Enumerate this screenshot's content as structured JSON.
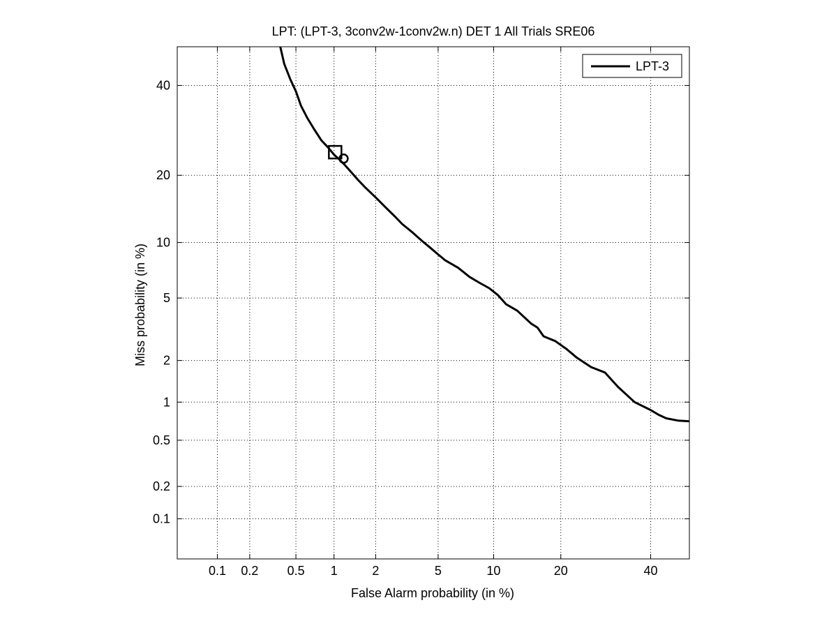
{
  "chart_data": {
    "type": "line",
    "title": "LPT: (LPT-3, 3conv2w-1conv2w.n) DET 1 All Trials SRE06",
    "xlabel": "False Alarm probability (in %)",
    "ylabel": "Miss probability (in %)",
    "x_scale": "normal-deviate (probit)",
    "y_scale": "normal-deviate (probit)",
    "xlim": [
      0.04,
      50
    ],
    "ylim": [
      0.04,
      50
    ],
    "x_ticks": [
      0.1,
      0.2,
      0.5,
      1,
      2,
      5,
      10,
      20,
      40
    ],
    "x_tick_labels": [
      "0.1",
      "0.2",
      "0.5",
      "1",
      "2",
      "5",
      "10",
      "20",
      "40"
    ],
    "y_ticks": [
      0.1,
      0.2,
      0.5,
      1,
      2,
      5,
      10,
      20,
      40
    ],
    "y_tick_labels": [
      "0.1",
      "0.2",
      "0.5",
      "1",
      "2",
      "5",
      "10",
      "20",
      "40"
    ],
    "grid": true,
    "legend_position": "top-right",
    "series": [
      {
        "name": "LPT-3",
        "color": "#000000",
        "points": [
          [
            0.37,
            50
          ],
          [
            0.4,
            45.5
          ],
          [
            0.45,
            41.5
          ],
          [
            0.5,
            38.5
          ],
          [
            0.55,
            35
          ],
          [
            0.62,
            32
          ],
          [
            0.7,
            29.5
          ],
          [
            0.8,
            27
          ],
          [
            0.9,
            25.5
          ],
          [
            1.0,
            24
          ],
          [
            1.1,
            23
          ],
          [
            1.2,
            22
          ],
          [
            1.35,
            20.5
          ],
          [
            1.5,
            19.2
          ],
          [
            1.7,
            17.8
          ],
          [
            2.0,
            16.2
          ],
          [
            2.3,
            14.8
          ],
          [
            2.7,
            13.3
          ],
          [
            3.0,
            12.3
          ],
          [
            3.5,
            11.2
          ],
          [
            4.0,
            10.2
          ],
          [
            4.5,
            9.4
          ],
          [
            5.0,
            8.7
          ],
          [
            5.5,
            8.1
          ],
          [
            6.5,
            7.4
          ],
          [
            7.5,
            6.6
          ],
          [
            8.5,
            6.1
          ],
          [
            9.5,
            5.7
          ],
          [
            10.5,
            5.2
          ],
          [
            11.5,
            4.6
          ],
          [
            13.0,
            4.2
          ],
          [
            15.0,
            3.5
          ],
          [
            16.0,
            3.3
          ],
          [
            17.0,
            2.9
          ],
          [
            19.0,
            2.7
          ],
          [
            21.0,
            2.4
          ],
          [
            23.0,
            2.1
          ],
          [
            26.0,
            1.8
          ],
          [
            29.0,
            1.65
          ],
          [
            32.0,
            1.3
          ],
          [
            36.0,
            1.0
          ],
          [
            40.0,
            0.87
          ],
          [
            42.0,
            0.8
          ],
          [
            44.0,
            0.75
          ],
          [
            47.0,
            0.72
          ],
          [
            50.0,
            0.71
          ]
        ]
      }
    ],
    "markers": [
      {
        "shape": "square",
        "x": 1.02,
        "y": 24.5
      },
      {
        "shape": "circle",
        "x": 1.18,
        "y": 23.2
      }
    ]
  }
}
